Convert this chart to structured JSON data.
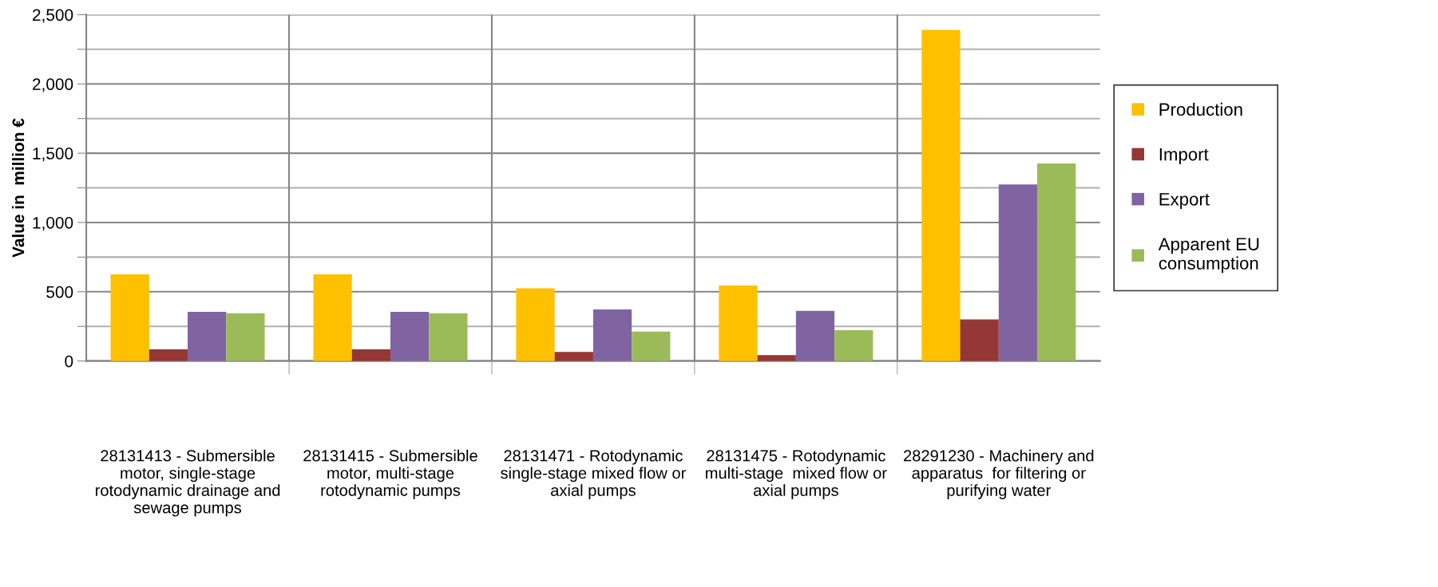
{
  "chart_data": {
    "type": "bar",
    "ylabel": "Value in  million €",
    "categories": [
      "28131413 - Submersible motor, single-stage rotodynamic drainage and sewage pumps",
      "28131415 - Submersible motor, multi-stage rotodynamic pumps",
      "28131471 - Rotodynamic single-stage mixed flow or axial pumps",
      "28131475 - Rotodynamic multi-stage  mixed flow or axial pumps",
      "28291230 - Machinery and apparatus  for filtering or purifying water"
    ],
    "series": [
      {
        "name": "Production",
        "color": "#ffc000",
        "values": [
          625,
          625,
          525,
          545,
          2390
        ]
      },
      {
        "name": "Import",
        "color": "#953735",
        "values": [
          85,
          85,
          65,
          42,
          300
        ]
      },
      {
        "name": "Export",
        "color": "#8064a2",
        "values": [
          355,
          355,
          372,
          362,
          1275
        ]
      },
      {
        "name": "Apparent EU consumption",
        "color": "#9bbb59",
        "values": [
          345,
          345,
          212,
          222,
          1425
        ]
      }
    ],
    "ylim": [
      0,
      2500
    ],
    "yticks": [
      {
        "value": 0,
        "label": "0"
      },
      {
        "value": 250,
        "label": null
      },
      {
        "value": 500,
        "label": "500"
      },
      {
        "value": 750,
        "label": null
      },
      {
        "value": 1000,
        "label": "1,000"
      },
      {
        "value": 1250,
        "label": null
      },
      {
        "value": 1500,
        "label": "1,500"
      },
      {
        "value": 1750,
        "label": null
      },
      {
        "value": 2000,
        "label": "2,000"
      },
      {
        "value": 2250,
        "label": null
      },
      {
        "value": 2500,
        "label": "2,500"
      }
    ],
    "grid": true,
    "legend": "right"
  }
}
